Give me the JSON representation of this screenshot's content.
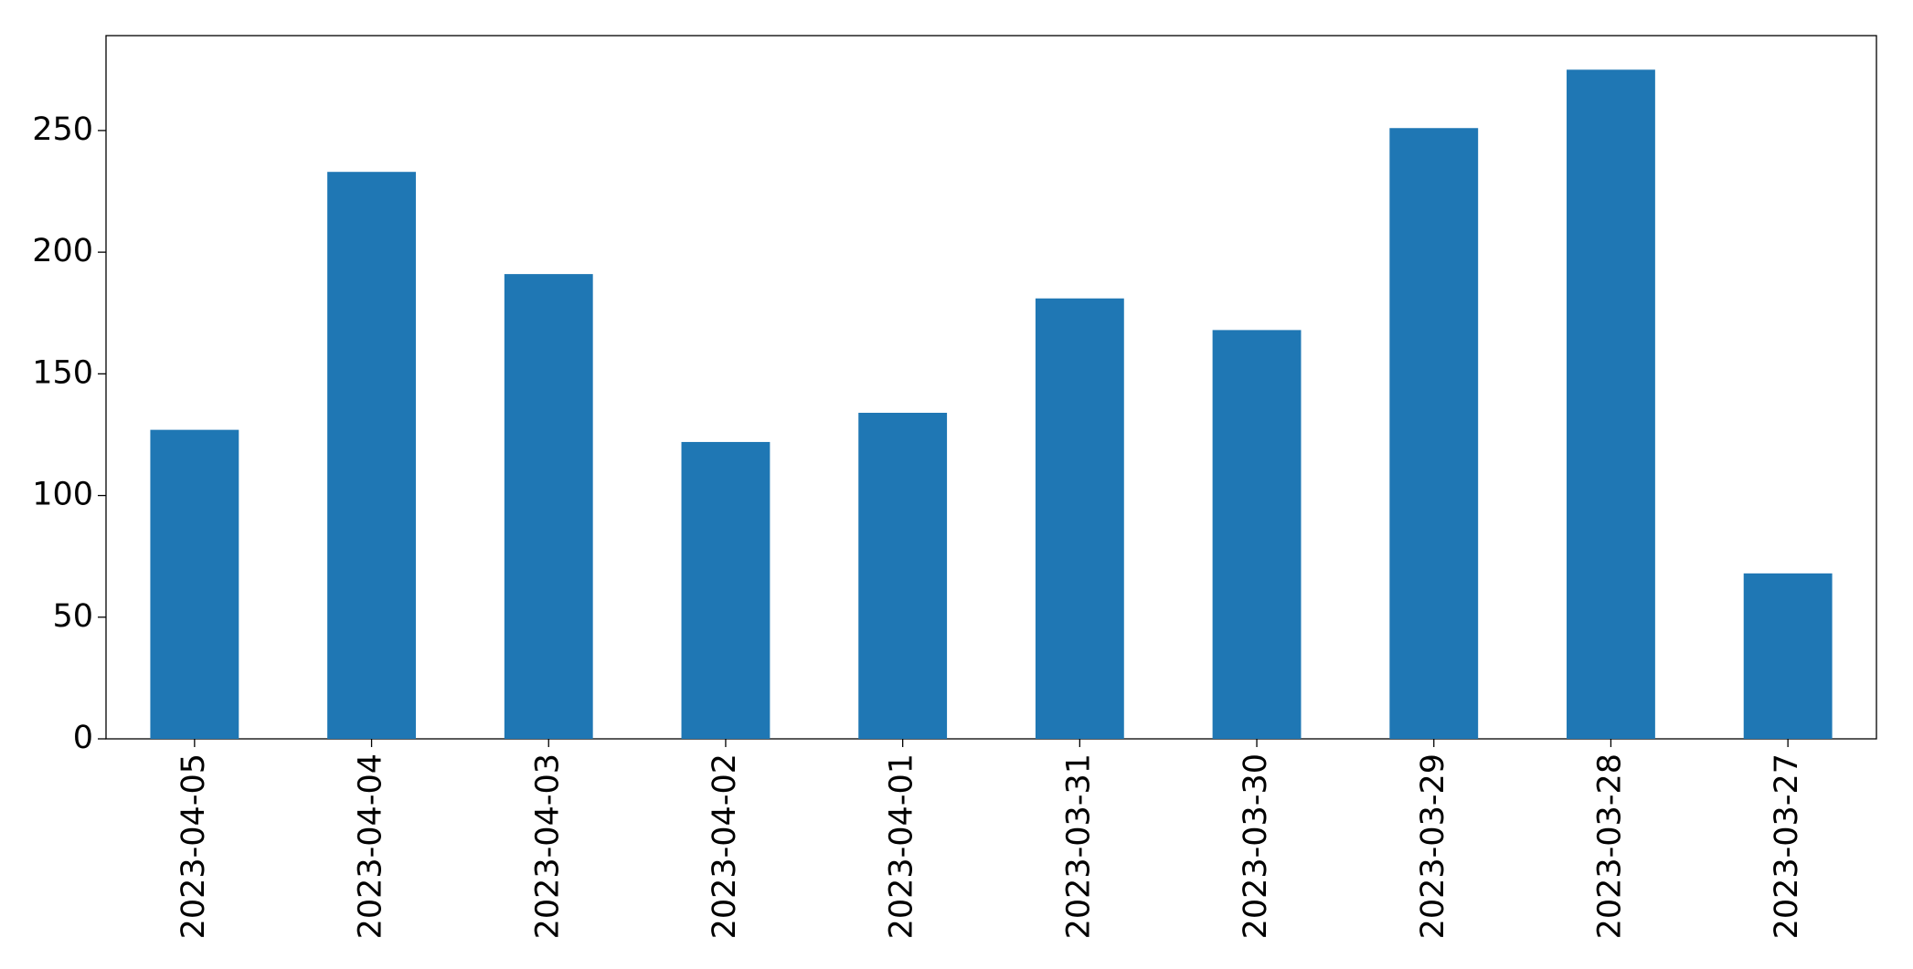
{
  "chart_data": {
    "type": "bar",
    "categories": [
      "2023-04-05",
      "2023-04-04",
      "2023-04-03",
      "2023-04-02",
      "2023-04-01",
      "2023-03-31",
      "2023-03-30",
      "2023-03-29",
      "2023-03-28",
      "2023-03-27"
    ],
    "values": [
      127,
      233,
      191,
      122,
      134,
      181,
      168,
      251,
      275,
      68
    ],
    "color": "#1f77b4",
    "ylim": [
      0,
      289
    ],
    "yticks": [
      0,
      50,
      100,
      150,
      200,
      250
    ],
    "grid": false
  }
}
